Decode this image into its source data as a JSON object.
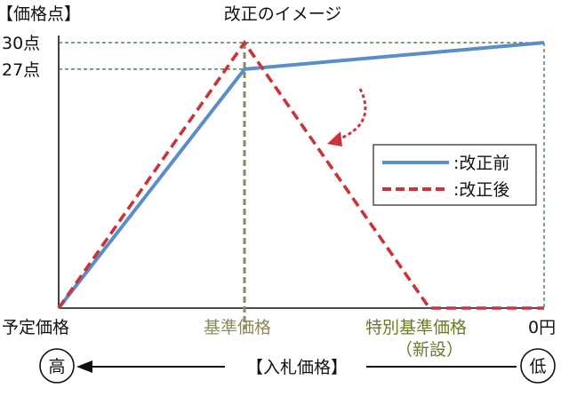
{
  "chart_data": {
    "type": "line",
    "title": "改正のイメージ",
    "y_axis_title": "【価格点】",
    "x_axis_title": "【入札価格】",
    "x_categories": [
      "予定価格",
      "基準価格",
      "特別基準価格（新設）",
      "0円"
    ],
    "x_category_lines": [
      "予定価格",
      "基準価格",
      "特別基準価格\n（新設）",
      "0円"
    ],
    "x_left_end_label": "高",
    "x_right_end_label": "低",
    "y_ticks": [
      {
        "value": 30,
        "label": "30点"
      },
      {
        "value": 27,
        "label": "27点"
      }
    ],
    "ylim": [
      0,
      30
    ],
    "series": [
      {
        "name": "改正前",
        "color": "#5b8ec9",
        "style": "solid",
        "points": [
          [
            0,
            0
          ],
          [
            1,
            27
          ],
          [
            3,
            30
          ]
        ]
      },
      {
        "name": "改正後",
        "color": "#c9343a",
        "style": "dashed",
        "points": [
          [
            0,
            0
          ],
          [
            1,
            30
          ],
          [
            2,
            0
          ],
          [
            3,
            0
          ]
        ]
      }
    ],
    "legend_position": "right-middle",
    "base_price_line_color": "#8c8a5e",
    "special_label_color": "#6d7a2a",
    "guide_color": "#2d6b2d"
  }
}
